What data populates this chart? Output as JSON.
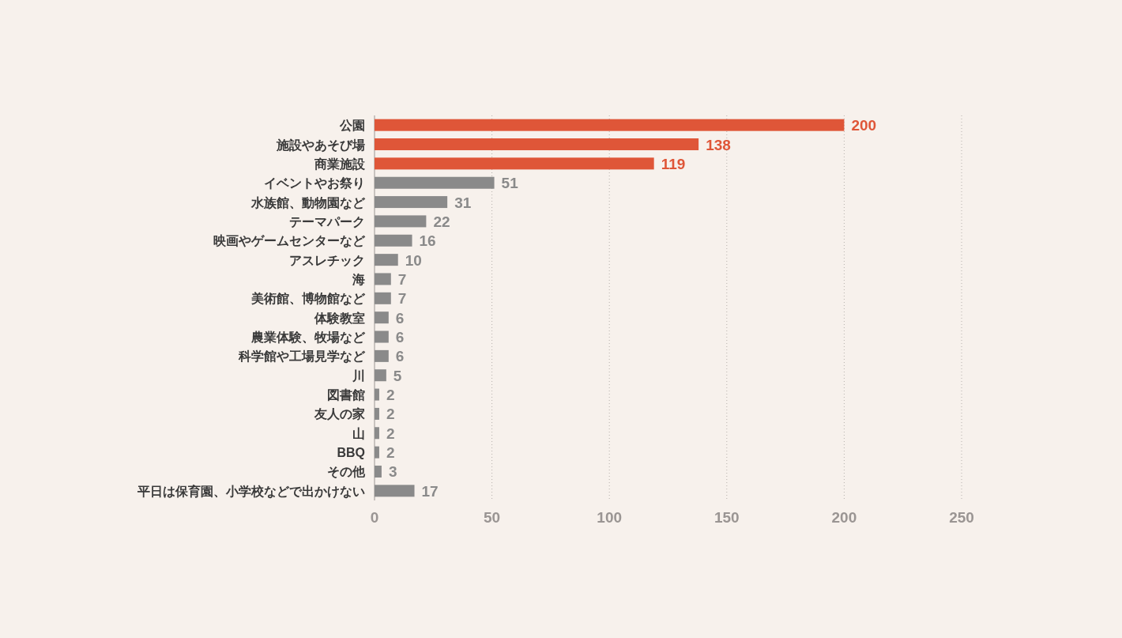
{
  "chart_data": {
    "type": "bar",
    "orientation": "horizontal",
    "categories": [
      "公園",
      "施設やあそび場",
      "商業施設",
      "イベントやお祭り",
      "水族館、動物園など",
      "テーマパーク",
      "映画やゲームセンターなど",
      "アスレチック",
      "海",
      "美術館、博物館など",
      "体験教室",
      "農業体験、牧場など",
      "科学館や工場見学など",
      "川",
      "図書館",
      "友人の家",
      "山",
      "BBQ",
      "その他",
      "平日は保育園、小学校などで出かけない"
    ],
    "values": [
      200,
      138,
      119,
      51,
      31,
      22,
      16,
      10,
      7,
      7,
      6,
      6,
      6,
      5,
      2,
      2,
      2,
      2,
      3,
      17
    ],
    "colors": [
      "#df5638",
      "#df5638",
      "#df5638",
      "#8a8a8a",
      "#8a8a8a",
      "#8a8a8a",
      "#8a8a8a",
      "#8a8a8a",
      "#8a8a8a",
      "#8a8a8a",
      "#8a8a8a",
      "#8a8a8a",
      "#8a8a8a",
      "#8a8a8a",
      "#8a8a8a",
      "#8a8a8a",
      "#8a8a8a",
      "#8a8a8a",
      "#8a8a8a",
      "#8a8a8a"
    ],
    "xlim": [
      0,
      250
    ],
    "xticks": [
      0,
      50,
      100,
      150,
      200,
      250
    ],
    "grid": "x",
    "data_labels": true
  }
}
